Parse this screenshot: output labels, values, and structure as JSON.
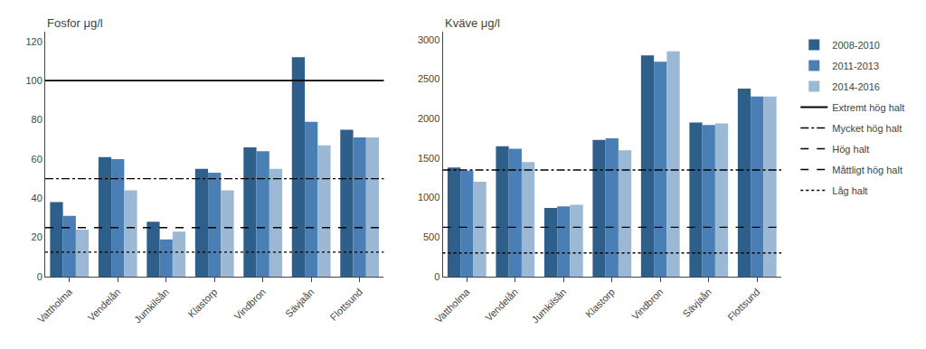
{
  "chart_data": [
    {
      "type": "bar",
      "title": "Fosfor μg/l",
      "categories": [
        "Vattholma",
        "Vendelån",
        "Jumkilsån",
        "Klastorp",
        "Vindbron",
        "Sävjaån",
        "Flottsund"
      ],
      "series": [
        {
          "name": "2008-2010",
          "color": "#2E5F8A",
          "values": [
            38,
            61,
            28,
            55,
            66,
            112,
            75
          ]
        },
        {
          "name": "2011-2013",
          "color": "#4A7FB5",
          "values": [
            31,
            60,
            19,
            53,
            64,
            79,
            71
          ]
        },
        {
          "name": "2014-2016",
          "color": "#9BB8D4",
          "values": [
            24,
            44,
            23,
            44,
            55,
            67,
            71
          ]
        }
      ],
      "reference_lines": [
        {
          "value": 100,
          "line_style": "solid"
        },
        {
          "value": 50,
          "line_style": "dashdot"
        },
        {
          "value": 25,
          "line_style": "dashed"
        },
        {
          "value": 12.5,
          "line_style": "dotted"
        }
      ],
      "legend_lines": [
        {
          "name": "Extremt hög halt",
          "line_style": "solid"
        },
        {
          "name": "Mycket hög halt",
          "line_style": "dashdot"
        },
        {
          "name": "Hög halt",
          "line_style": "dashed"
        },
        {
          "name": "Måttligt hög halt",
          "line_style": "dashed"
        },
        {
          "name": "Låg halt",
          "line_style": "dotted"
        }
      ],
      "legend": "right",
      "ylim": [
        0,
        125
      ],
      "yticks": [
        0,
        20,
        40,
        60,
        80,
        100,
        120
      ],
      "grid": false
    },
    {
      "type": "bar",
      "title": "Kväve μg/l",
      "categories": [
        "Vattholma",
        "Vendelån",
        "Jumkilsån",
        "Klastorp",
        "Vindbron",
        "Sävjaån",
        "Flottsund"
      ],
      "series": [
        {
          "name": "2008-2010",
          "color": "#2E5F8A",
          "values": [
            1380,
            1650,
            870,
            1730,
            2800,
            1950,
            2380
          ]
        },
        {
          "name": "2011-2013",
          "color": "#4A7FB5",
          "values": [
            1340,
            1620,
            890,
            1750,
            2720,
            1920,
            2280
          ]
        },
        {
          "name": "2014-2016",
          "color": "#9BB8D4",
          "values": [
            1200,
            1450,
            910,
            1600,
            2850,
            1940,
            2280
          ]
        }
      ],
      "reference_lines": [
        {
          "value": 1350,
          "line_style": "dashdot"
        },
        {
          "value": 625,
          "line_style": "dashed"
        },
        {
          "value": 300,
          "line_style": "dotted"
        }
      ],
      "ylim": [
        0,
        3100
      ],
      "yticks": [
        0,
        500,
        1000,
        1500,
        2000,
        2500,
        3000
      ],
      "grid": false
    }
  ]
}
